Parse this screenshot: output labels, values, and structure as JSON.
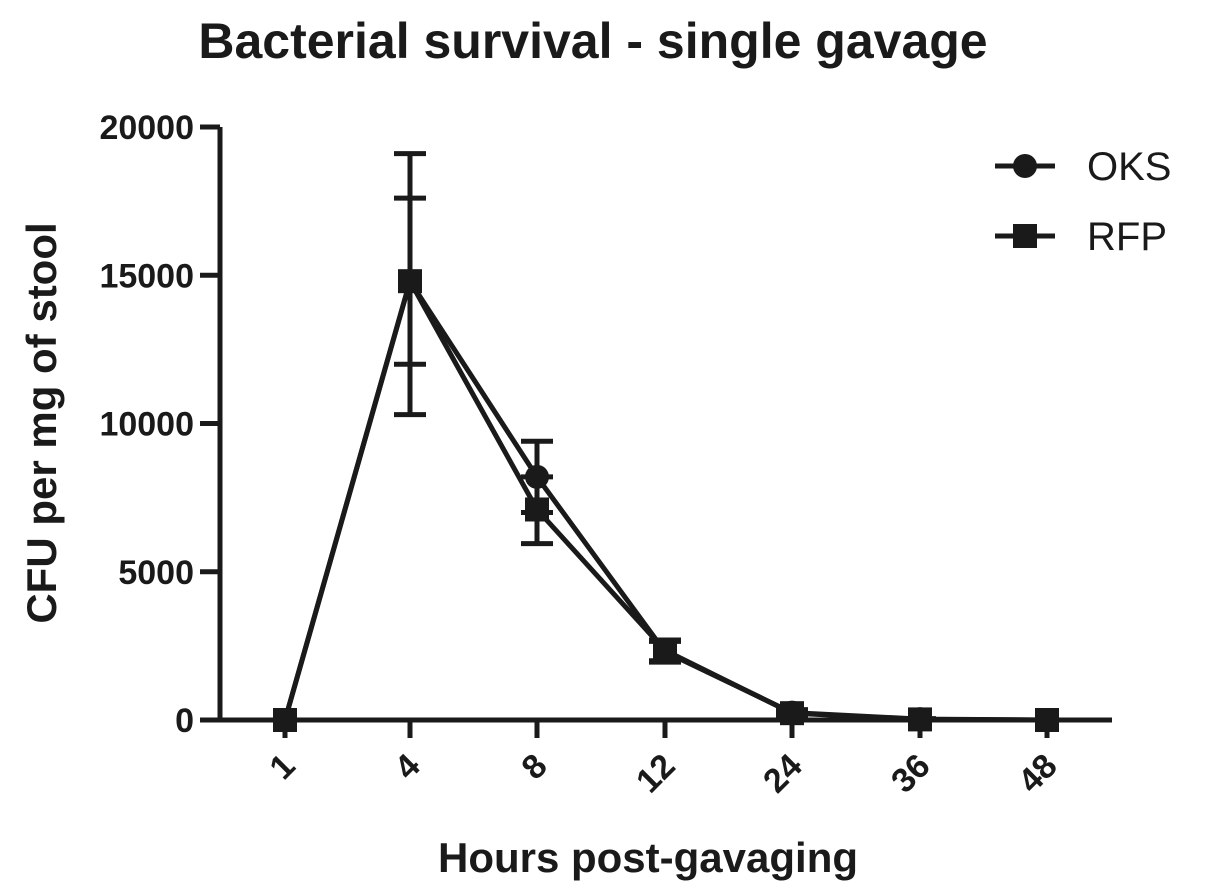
{
  "chart_data": {
    "type": "line",
    "title": "Bacterial survival - single gavage",
    "xlabel": "Hours post-gavaging",
    "ylabel": "CFU per mg of stool",
    "categories": [
      "1",
      "4",
      "8",
      "12",
      "24",
      "36",
      "48"
    ],
    "ylim": [
      0,
      20000
    ],
    "yticks": [
      0,
      5000,
      10000,
      15000,
      20000
    ],
    "grid": false,
    "legend_position": "top-right",
    "series": [
      {
        "name": "OKS",
        "marker": "circle",
        "values": [
          0,
          14800,
          8200,
          2300,
          250,
          30,
          0
        ],
        "err_lower": [
          0,
          10300,
          7000,
          1950,
          150,
          15,
          0
        ],
        "err_upper": [
          0,
          19100,
          9400,
          2650,
          350,
          45,
          0
        ]
      },
      {
        "name": "RFP",
        "marker": "square",
        "values": [
          0,
          14800,
          7100,
          2350,
          230,
          20,
          0
        ],
        "err_lower": [
          0,
          12000,
          5950,
          2000,
          140,
          10,
          0
        ],
        "err_upper": [
          0,
          17600,
          8200,
          2700,
          320,
          30,
          0
        ]
      }
    ],
    "colors": {
      "line": "#1a1a1a",
      "axis": "#1a1a1a",
      "background": "#ffffff"
    }
  }
}
